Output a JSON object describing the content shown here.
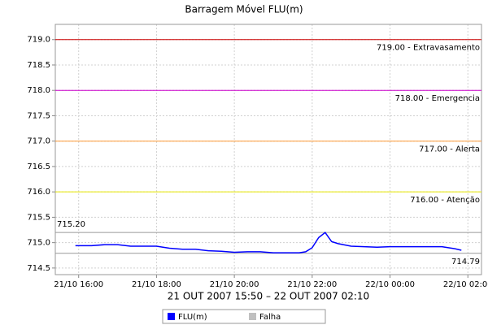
{
  "chart_data": {
    "type": "line",
    "title": "Barragem Móvel FLU(m)",
    "x_label": "21 OUT 2007 15:50 – 22 OUT 2007 02:10",
    "x": [
      "2007-10-21T15:55",
      "2007-10-21T16:20",
      "2007-10-21T16:40",
      "2007-10-21T17:00",
      "2007-10-21T17:20",
      "2007-10-21T17:40",
      "2007-10-21T18:00",
      "2007-10-21T18:20",
      "2007-10-21T18:40",
      "2007-10-21T19:00",
      "2007-10-21T19:20",
      "2007-10-21T19:40",
      "2007-10-21T20:00",
      "2007-10-21T20:20",
      "2007-10-21T20:40",
      "2007-10-21T21:00",
      "2007-10-21T21:20",
      "2007-10-21T21:40",
      "2007-10-21T21:50",
      "2007-10-21T22:00",
      "2007-10-21T22:10",
      "2007-10-21T22:20",
      "2007-10-21T22:30",
      "2007-10-21T22:40",
      "2007-10-21T23:00",
      "2007-10-21T23:20",
      "2007-10-21T23:40",
      "2007-10-22T00:00",
      "2007-10-22T00:20",
      "2007-10-22T00:40",
      "2007-10-22T01:00",
      "2007-10-22T01:20",
      "2007-10-22T01:40",
      "2007-10-22T01:50"
    ],
    "series": [
      {
        "name": "FLU(m)",
        "color": "#0000ff",
        "values": [
          714.94,
          714.94,
          714.96,
          714.96,
          714.93,
          714.93,
          714.93,
          714.89,
          714.87,
          714.87,
          714.84,
          714.83,
          714.81,
          714.82,
          714.82,
          714.8,
          714.8,
          714.8,
          714.82,
          714.9,
          715.1,
          715.2,
          715.02,
          714.98,
          714.93,
          714.92,
          714.91,
          714.92,
          714.92,
          714.92,
          714.92,
          714.92,
          714.88,
          714.85
        ]
      },
      {
        "name": "Falha",
        "color": "#c0c0c0",
        "values": [
          null,
          null,
          null,
          null,
          null,
          null,
          null,
          null,
          null,
          null,
          null,
          null,
          null,
          null,
          null,
          null,
          null,
          null,
          null,
          null,
          null,
          null,
          null,
          null,
          null,
          null,
          null,
          null,
          null,
          null,
          null,
          null,
          null,
          null
        ]
      }
    ],
    "thresholds": [
      {
        "value": 719,
        "label": "719.00 - Extravasamento",
        "color": "#cc0000"
      },
      {
        "value": 718,
        "label": "718.00 - Emergencia",
        "color": "#cc00cc"
      },
      {
        "value": 717,
        "label": "717.00 - Alerta",
        "color": "#ff9933"
      },
      {
        "value": 716,
        "label": "716.00 - Atenção",
        "color": "#e6e600"
      }
    ],
    "extremes": [
      {
        "value": 715.2,
        "label": "715.20",
        "color": "#999999"
      },
      {
        "value": 714.79,
        "label": "714.79",
        "color": "#999999"
      }
    ],
    "xlim": [
      "2007-10-21T15:24",
      "2007-10-22T02:21"
    ],
    "xticks": [
      {
        "value": "2007-10-21T16:00",
        "label": "21/10 16:00"
      },
      {
        "value": "2007-10-21T18:00",
        "label": "21/10 18:00"
      },
      {
        "value": "2007-10-21T20:00",
        "label": "21/10 20:00"
      },
      {
        "value": "2007-10-21T22:00",
        "label": "21/10 22:00"
      },
      {
        "value": "2007-10-22T00:00",
        "label": "22/10 00:00"
      },
      {
        "value": "2007-10-22T02:00",
        "label": "22/10 02:00"
      }
    ],
    "ylim": [
      714.37,
      719.3
    ],
    "yticks": [
      714.5,
      {
        "value": 715,
        "label": "715.0"
      },
      715.5,
      {
        "value": 716,
        "label": "716.0"
      },
      716.5,
      {
        "value": 717,
        "label": "717.0"
      },
      717.5,
      {
        "value": 718,
        "label": "718.0"
      },
      718.5,
      {
        "value": 719,
        "label": "719.0"
      }
    ],
    "grid": true
  }
}
